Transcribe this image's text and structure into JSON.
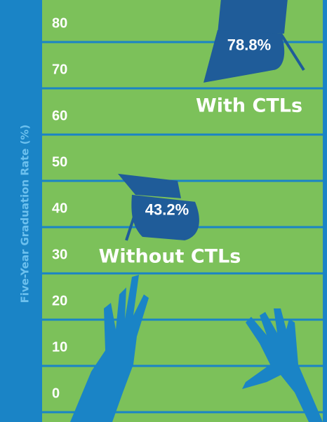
{
  "chart_data": {
    "type": "pictograph",
    "y_axis_label": "Five-Year Graduation Rate (%)",
    "categories": [
      "Without CTLs",
      "With CTLs"
    ],
    "values": [
      43.2,
      78.8
    ],
    "value_labels": [
      "43.2%",
      "78.8%"
    ],
    "color": "#1f5c99",
    "ylim": [
      0,
      80
    ],
    "yticks": [
      0,
      10,
      20,
      30,
      40,
      50,
      60,
      70,
      80
    ],
    "grid": true
  }
}
